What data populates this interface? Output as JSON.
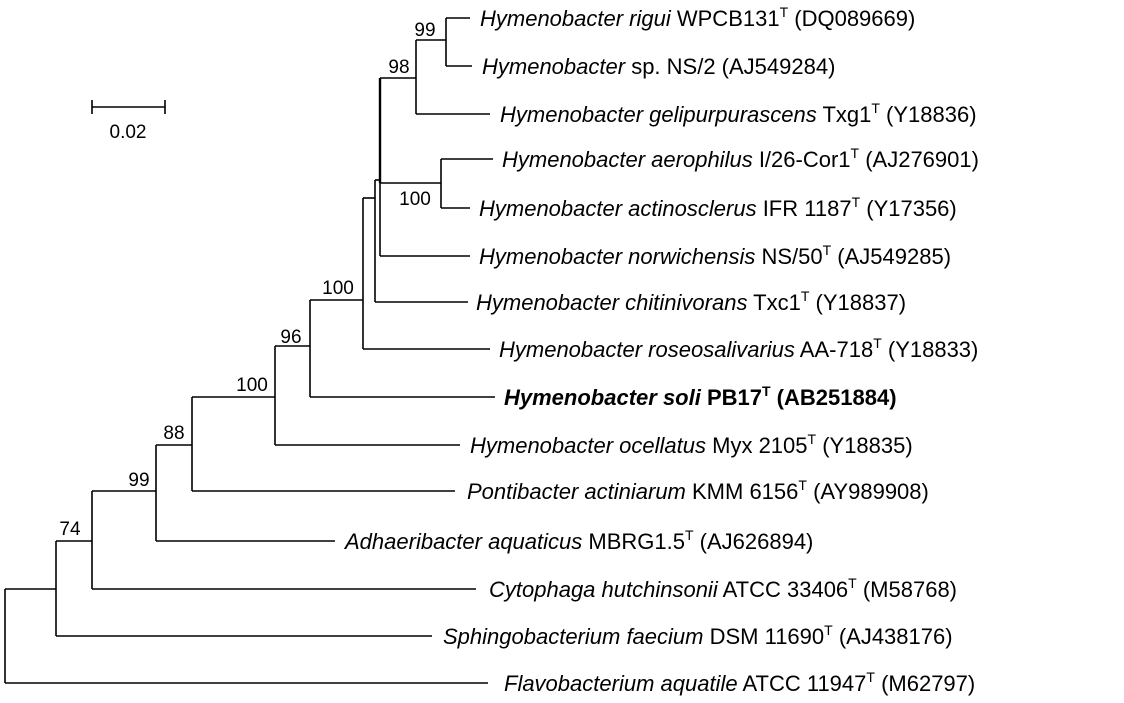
{
  "scale_bar": {
    "label": "0.02"
  },
  "taxa": [
    {
      "id": "rigui",
      "italic": "Hymenobacter rigui",
      "strain": "WPCB131",
      "type_strain": true,
      "accession": "(DQ089669)",
      "bold": false
    },
    {
      "id": "ns2",
      "italic": "Hymenobacter",
      "strain": "sp. NS/2",
      "type_strain": false,
      "accession": "(AJ549284)",
      "bold": false
    },
    {
      "id": "gelipurpurascens",
      "italic": "Hymenobacter gelipurpurascens",
      "strain": "Txg1",
      "type_strain": true,
      "accession": "(Y18836)",
      "bold": false
    },
    {
      "id": "aerophilus",
      "italic": "Hymenobacter aerophilus",
      "strain": "I/26-Cor1",
      "type_strain": true,
      "accession": "(AJ276901)",
      "bold": false
    },
    {
      "id": "actinosclerus",
      "italic": "Hymenobacter actinosclerus",
      "strain": "IFR 1187",
      "type_strain": true,
      "accession": "(Y17356)",
      "bold": false
    },
    {
      "id": "norwichensis",
      "italic": "Hymenobacter norwichensis",
      "strain": "NS/50",
      "type_strain": true,
      "accession": "(AJ549285)",
      "bold": false
    },
    {
      "id": "chitinivorans",
      "italic": "Hymenobacter chitinivorans",
      "strain": "Txc1",
      "type_strain": true,
      "accession": "(Y18837)",
      "bold": false
    },
    {
      "id": "roseosalivarius",
      "italic": "Hymenobacter roseosalivarius",
      "strain": "AA-718",
      "type_strain": true,
      "accession": "(Y18833)",
      "bold": false
    },
    {
      "id": "soli",
      "italic": "Hymenobacter soli",
      "strain": "PB17",
      "type_strain": true,
      "accession": "(AB251884)",
      "bold": true
    },
    {
      "id": "ocellatus",
      "italic": "Hymenobacter ocellatus",
      "strain": "Myx 2105",
      "type_strain": true,
      "accession": "(Y18835)",
      "bold": false
    },
    {
      "id": "pontibacter",
      "italic": "Pontibacter actiniarum",
      "strain": "KMM 6156",
      "type_strain": true,
      "accession": "(AY989908)",
      "bold": false
    },
    {
      "id": "adhaeribacter",
      "italic": "Adhaeribacter aquaticus",
      "strain": "MBRG1.5",
      "type_strain": true,
      "accession": "(AJ626894)",
      "bold": false
    },
    {
      "id": "cytophaga",
      "italic": "Cytophaga hutchinsonii",
      "strain": "ATCC 33406",
      "type_strain": true,
      "accession": "(M58768)",
      "bold": false
    },
    {
      "id": "sphingobacterium",
      "italic": "Sphingobacterium faecium",
      "strain": "DSM 11690",
      "type_strain": true,
      "accession": "(AJ438176)",
      "bold": false
    },
    {
      "id": "flavobacterium",
      "italic": "Flavobacterium aquatile",
      "strain": "ATCC 11947",
      "type_strain": true,
      "accession": "(M62797)",
      "bold": false
    }
  ],
  "type_strain_mark": "T",
  "bootstrap": [
    {
      "id": "n_rigui_ns2",
      "value": "99"
    },
    {
      "id": "n_rigui_gelip",
      "value": "98"
    },
    {
      "id": "n_aero_actino",
      "value": "100"
    },
    {
      "id": "n_hymeno_core",
      "value": "100"
    },
    {
      "id": "n_with_soli",
      "value": "96"
    },
    {
      "id": "n_hymenobacter",
      "value": "100"
    },
    {
      "id": "n_pontibacter",
      "value": "88"
    },
    {
      "id": "n_adhaeribacter",
      "value": "99"
    },
    {
      "id": "n_cytophaga",
      "value": "74"
    }
  ]
}
